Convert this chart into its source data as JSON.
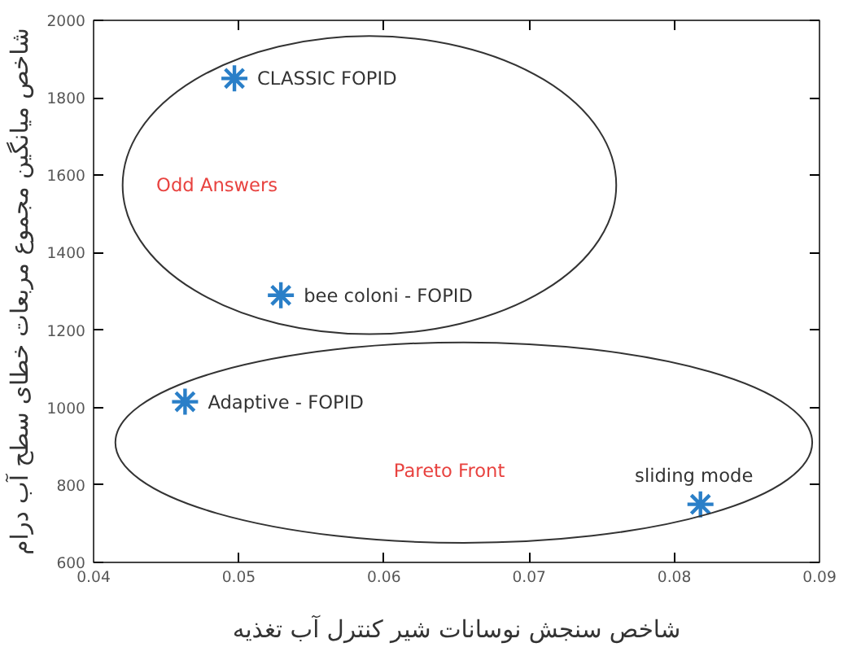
{
  "chart_data": {
    "type": "scatter",
    "xlabel": "شاخص سنجش نوسانات شیر کنترل آب تغذیه",
    "ylabel": "شاخص میانگین مجموع مربعات خطای سطح آب درام",
    "x": [
      0.0497,
      0.0529,
      0.0463,
      0.0818
    ],
    "series": [
      {
        "color": "#2a7fc8",
        "values": [
          1850,
          1290,
          1015,
          750
        ]
      }
    ],
    "xlim": [
      0.04,
      0.09
    ],
    "xticks": [
      0.04,
      0.05,
      0.06,
      0.07,
      0.08,
      0.09
    ],
    "ylim": [
      600,
      2000
    ],
    "yticks": [
      600,
      800,
      1000,
      1200,
      1400,
      1600,
      1800,
      2000
    ],
    "grid": false,
    "marker": "cross",
    "annotations": [
      {
        "text": "CLASSIC FOPID",
        "x": 0.0497,
        "y": 1850
      },
      {
        "text": "bee coloni - FOPID",
        "x": 0.0529,
        "y": 1290
      },
      {
        "text": "Adaptive - FOPID",
        "x": 0.0463,
        "y": 1015
      },
      {
        "text": "sliding mode",
        "x": 0.0818,
        "y": 750
      },
      "Odd Answers",
      "Pareto Front"
    ]
  }
}
